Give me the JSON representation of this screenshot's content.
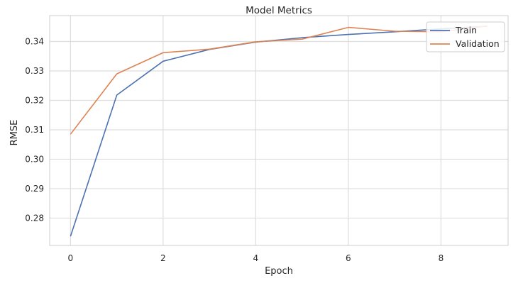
{
  "chart_data": {
    "type": "line",
    "title": "Model Metrics",
    "xlabel": "Epoch",
    "ylabel": "RMSE",
    "x": [
      0,
      1,
      2,
      3,
      4,
      5,
      6,
      7,
      8,
      9
    ],
    "xlim": [
      -0.45,
      9.45
    ],
    "ylim": [
      0.2707,
      0.3488
    ],
    "xticks": [
      0,
      2,
      4,
      6,
      8
    ],
    "yticks": [
      0.28,
      0.29,
      0.3,
      0.31,
      0.32,
      0.33,
      0.34
    ],
    "ytick_labels": [
      "0.28",
      "0.29",
      "0.30",
      "0.31",
      "0.32",
      "0.33",
      "0.34"
    ],
    "grid": true,
    "legend_position": "top-right",
    "series": [
      {
        "name": "Train",
        "color": "#4c72b0",
        "values": [
          0.2738,
          0.3218,
          0.3333,
          0.3373,
          0.3398,
          0.3413,
          0.3424,
          0.3433,
          0.3443,
          0.3452
        ]
      },
      {
        "name": "Validation",
        "color": "#dd8452",
        "values": [
          0.3085,
          0.329,
          0.3362,
          0.3374,
          0.3399,
          0.3408,
          0.3448,
          0.3435,
          0.3433,
          0.3453
        ]
      }
    ]
  }
}
